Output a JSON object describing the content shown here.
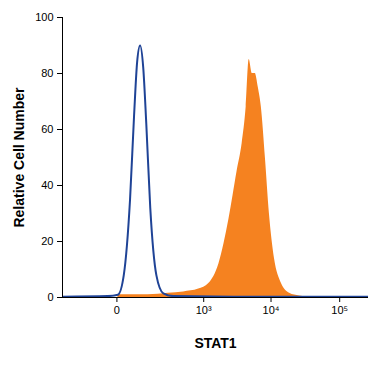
{
  "chart_data": {
    "type": "area",
    "xlabel": "STAT1",
    "ylabel": "Relative Cell Number",
    "log": "x",
    "xlim": [
      -300,
      262144
    ],
    "xticks": [
      0,
      {
        "value": 1000,
        "label": "10³"
      },
      {
        "value": 10000,
        "label": "10⁴"
      },
      {
        "value": 100000,
        "label": "10⁵"
      }
    ],
    "ylim": [
      0,
      100
    ],
    "yticks": [
      0,
      20,
      40,
      60,
      80,
      100
    ],
    "series": [
      {
        "type": "area",
        "color": "#f58220",
        "x": [
          2,
          107,
          267,
          481,
          837,
          1196,
          1701,
          2407,
          3172,
          3770,
          4322,
          4790,
          5307,
          5876,
          6513,
          7215,
          8266,
          9466,
          11217,
          14210,
          18680,
          26160,
          36700
        ],
        "values": [
          1,
          1,
          1.5,
          2,
          3,
          5,
          12,
          28,
          45,
          55,
          68,
          85,
          80,
          80,
          75,
          68,
          50,
          30,
          14,
          5,
          1.5,
          0.5,
          0
        ]
      },
      {
        "type": "line",
        "color": "#1f4396",
        "x": [
          -300,
          -21,
          2,
          15,
          32,
          45,
          56,
          68,
          82,
          97,
          119,
          159,
          216,
          327,
          4790,
          262144
        ],
        "values": [
          0.3,
          0.5,
          1,
          8,
          35,
          65,
          84,
          90,
          82,
          62,
          32,
          8,
          1.5,
          0.5,
          0.3,
          0.3
        ]
      }
    ]
  }
}
